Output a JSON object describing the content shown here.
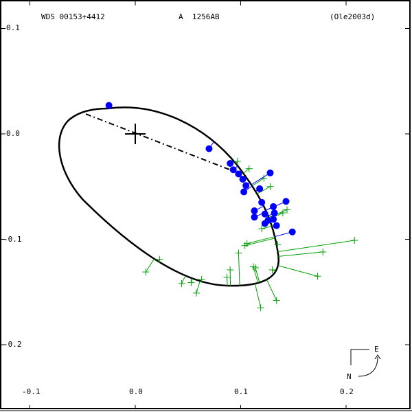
{
  "header": {
    "wds_id": "WDS 00153+4412",
    "pair": "A  1256AB",
    "reference": "(Ole2003d)"
  },
  "compass": {
    "north": "N",
    "east": "E"
  },
  "chart_data": {
    "type": "scatter",
    "title": "WDS 00153+4412   A  1256AB   (Ole2003d)",
    "xlabel": "",
    "ylabel": "",
    "xlim": [
      -0.1,
      0.26
    ],
    "ylim": [
      -0.25,
      0.1
    ],
    "x_ticks": [
      "-0.1",
      "0.0",
      "0.1",
      "0.2"
    ],
    "y_ticks": [
      "0.1",
      "0.0",
      "-0.1",
      "-0.2"
    ],
    "grid": false,
    "colors": {
      "orbit": "#000000",
      "micrometric": "#00a000",
      "interferometric": "#0000ff",
      "line_of_nodes": "#000000"
    },
    "orbit_ellipse": {
      "center": [
        0.035,
        -0.06
      ],
      "description": "fitted relative orbit, elongated NW-SE"
    },
    "primary_marker": [
      0.0,
      0.0
    ],
    "line_of_nodes": [
      [
        -0.047,
        0.018
      ],
      [
        0.09,
        -0.035
      ]
    ],
    "series": [
      {
        "name": "interferometric (blue dots)",
        "points": [
          [
            -0.025,
            0.027
          ],
          [
            0.07,
            -0.014
          ],
          [
            0.09,
            -0.028
          ],
          [
            0.093,
            -0.034
          ],
          [
            0.098,
            -0.038
          ],
          [
            0.102,
            -0.043
          ],
          [
            0.105,
            -0.049
          ],
          [
            0.103,
            -0.055
          ],
          [
            0.118,
            -0.052
          ],
          [
            0.128,
            -0.037
          ],
          [
            0.12,
            -0.065
          ],
          [
            0.113,
            -0.073
          ],
          [
            0.113,
            -0.079
          ],
          [
            0.123,
            -0.076
          ],
          [
            0.126,
            -0.082
          ],
          [
            0.131,
            -0.069
          ],
          [
            0.132,
            -0.075
          ],
          [
            0.131,
            -0.081
          ],
          [
            0.134,
            -0.087
          ],
          [
            0.143,
            -0.064
          ],
          [
            0.149,
            -0.093
          ],
          [
            0.123,
            -0.085
          ]
        ]
      },
      {
        "name": "micrometric (green crosses)",
        "points": [
          [
            0.097,
            -0.026
          ],
          [
            0.108,
            -0.033
          ],
          [
            0.122,
            -0.042
          ],
          [
            0.128,
            -0.05
          ],
          [
            0.144,
            -0.072
          ],
          [
            0.14,
            -0.075
          ],
          [
            0.12,
            -0.09
          ],
          [
            0.208,
            -0.101
          ],
          [
            0.178,
            -0.112
          ],
          [
            0.135,
            -0.105
          ],
          [
            0.106,
            -0.104
          ],
          [
            0.104,
            -0.106
          ],
          [
            0.098,
            -0.113
          ],
          [
            0.112,
            -0.126
          ],
          [
            0.114,
            -0.127
          ],
          [
            0.13,
            -0.129
          ],
          [
            0.173,
            -0.135
          ],
          [
            0.09,
            -0.129
          ],
          [
            0.134,
            -0.158
          ],
          [
            0.119,
            -0.165
          ],
          [
            0.023,
            -0.119
          ],
          [
            0.01,
            -0.131
          ],
          [
            0.044,
            -0.142
          ],
          [
            0.053,
            -0.141
          ],
          [
            0.063,
            -0.138
          ],
          [
            0.058,
            -0.151
          ],
          [
            0.087,
            -0.136
          ]
        ]
      }
    ]
  }
}
